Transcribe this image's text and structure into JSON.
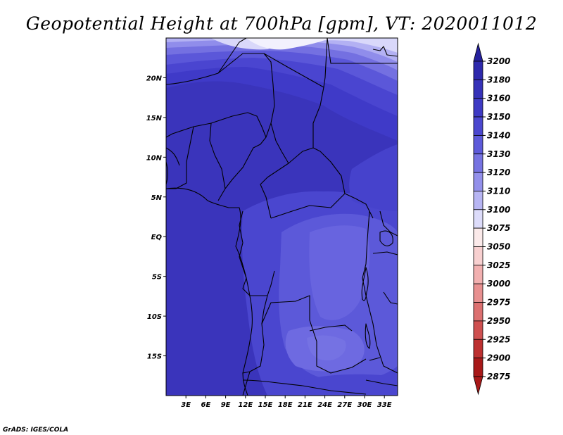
{
  "title": "Geopotential Height at 700hPa [gpm], VT: 2020011012",
  "credit": "GrADS: IGES/COLA",
  "map": {
    "lon_range": [
      0,
      35
    ],
    "lat_range": [
      -20,
      25
    ],
    "lon_ticks": [
      {
        "value": 3,
        "label": "3E"
      },
      {
        "value": 6,
        "label": "6E"
      },
      {
        "value": 9,
        "label": "9E"
      },
      {
        "value": 12,
        "label": "12E"
      },
      {
        "value": 15,
        "label": "15E"
      },
      {
        "value": 18,
        "label": "18E"
      },
      {
        "value": 21,
        "label": "21E"
      },
      {
        "value": 24,
        "label": "24E"
      },
      {
        "value": 27,
        "label": "27E"
      },
      {
        "value": 30,
        "label": "30E"
      },
      {
        "value": 33,
        "label": "33E"
      }
    ],
    "lat_ticks": [
      {
        "value": 20,
        "label": "20N"
      },
      {
        "value": 15,
        "label": "15N"
      },
      {
        "value": 10,
        "label": "10N"
      },
      {
        "value": 5,
        "label": "5N"
      },
      {
        "value": 0,
        "label": "EQ"
      },
      {
        "value": -5,
        "label": "5S"
      },
      {
        "value": -10,
        "label": "10S"
      },
      {
        "value": -15,
        "label": "15S"
      }
    ]
  },
  "colorbar": {
    "labels": [
      "3200",
      "3180",
      "3160",
      "3150",
      "3140",
      "3130",
      "3120",
      "3110",
      "3100",
      "3075",
      "3050",
      "3025",
      "3000",
      "2975",
      "2950",
      "2925",
      "2900",
      "2875"
    ],
    "colors": [
      "#26219e",
      "#2e29ad",
      "#3632b9",
      "#3e3ac4",
      "#4b47cf",
      "#5d5ada",
      "#7673e2",
      "#9390eb",
      "#b7b5f3",
      "#dddcfa",
      "#fbeaea",
      "#f8d0d0",
      "#f2b0b0",
      "#e89090",
      "#dc7070",
      "#cf5050",
      "#bd3030",
      "#a81818"
    ]
  }
}
